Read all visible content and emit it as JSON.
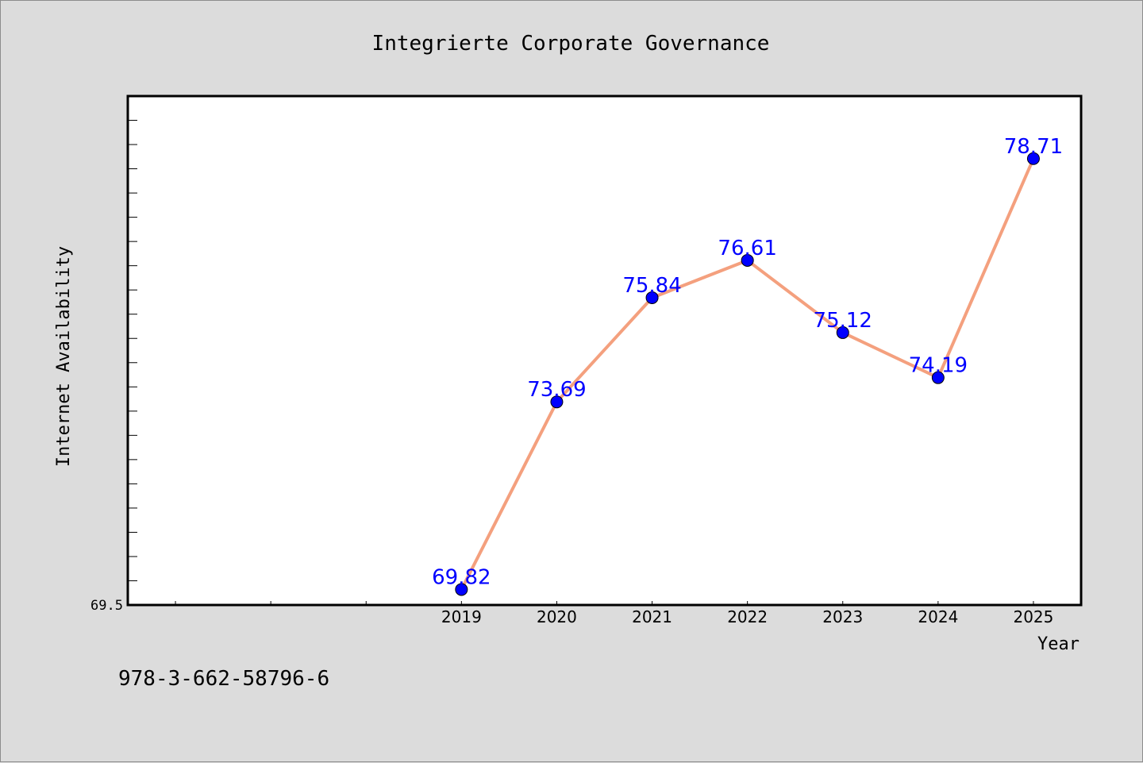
{
  "chart_data": {
    "type": "line",
    "title": "Integrierte Corporate Governance",
    "xlabel": "Year",
    "ylabel": "Internet Availability",
    "footer": "978-3-662-58796-6",
    "categories": [
      "2019",
      "2020",
      "2021",
      "2022",
      "2023",
      "2024",
      "2025"
    ],
    "series": [
      {
        "values": [
          69.82,
          73.69,
          75.84,
          76.61,
          75.12,
          74.19,
          78.71
        ],
        "data_labels": [
          "69.82",
          "73.69",
          "75.84",
          "76.61",
          "75.12",
          "74.19",
          "78.71"
        ]
      }
    ],
    "xlim": [
      2015.5,
      2025.5
    ],
    "ylim": [
      69.5,
      80.0
    ],
    "y_tick_labels": [
      "69.5"
    ],
    "grid": false,
    "colors": {
      "line": "#f4a07e",
      "marker": "#0000ff",
      "label": "#0000ff",
      "background": "#dcdcdc",
      "plot_background": "#ffffff"
    }
  }
}
